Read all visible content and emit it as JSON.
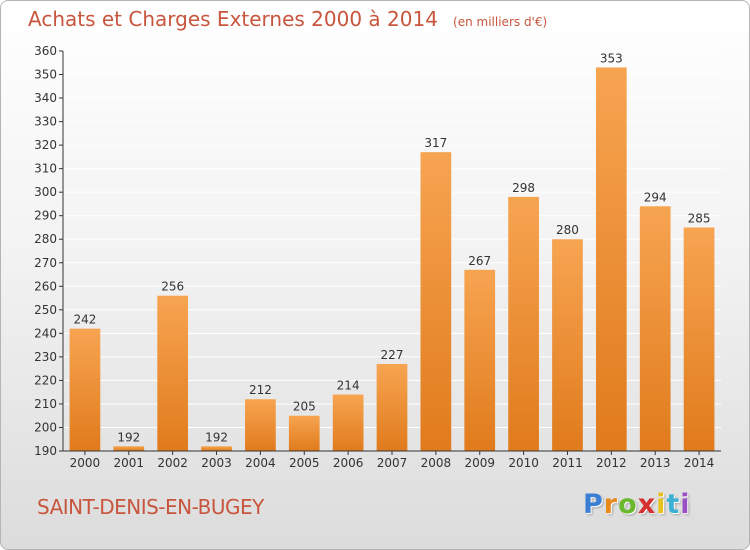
{
  "header": {
    "title": "Achats et Charges Externes 2000 à 2014",
    "unit": "(en milliers d'€)"
  },
  "footer": {
    "place": "SAINT-DENIS-EN-BUGEY",
    "brand": "Proxiti",
    "brand_colors": [
      "#3b7fd4",
      "#e8891c",
      "#6ab82e",
      "#d62f2f",
      "#e8c21c",
      "#3bb0d4",
      "#9b4fc4"
    ]
  },
  "colors": {
    "bar_light": "#f7a451",
    "bar_dark": "#e07b1c",
    "text": "#c8553d",
    "axis": "#333333",
    "grid": "#ffffff"
  },
  "chart_data": {
    "type": "bar",
    "title": "Achats et Charges Externes 2000 à 2014",
    "xlabel": "",
    "ylabel": "",
    "categories": [
      "2000",
      "2001",
      "2002",
      "2003",
      "2004",
      "2005",
      "2006",
      "2007",
      "2008",
      "2009",
      "2010",
      "2011",
      "2012",
      "2013",
      "2014"
    ],
    "values": [
      242,
      192,
      256,
      192,
      212,
      205,
      214,
      227,
      317,
      267,
      298,
      280,
      353,
      294,
      285
    ],
    "ylim": [
      190,
      360
    ],
    "yticks": [
      190,
      200,
      210,
      220,
      230,
      240,
      250,
      260,
      270,
      280,
      290,
      300,
      310,
      320,
      330,
      340,
      350,
      360
    ],
    "grid": true,
    "legend": "none"
  }
}
